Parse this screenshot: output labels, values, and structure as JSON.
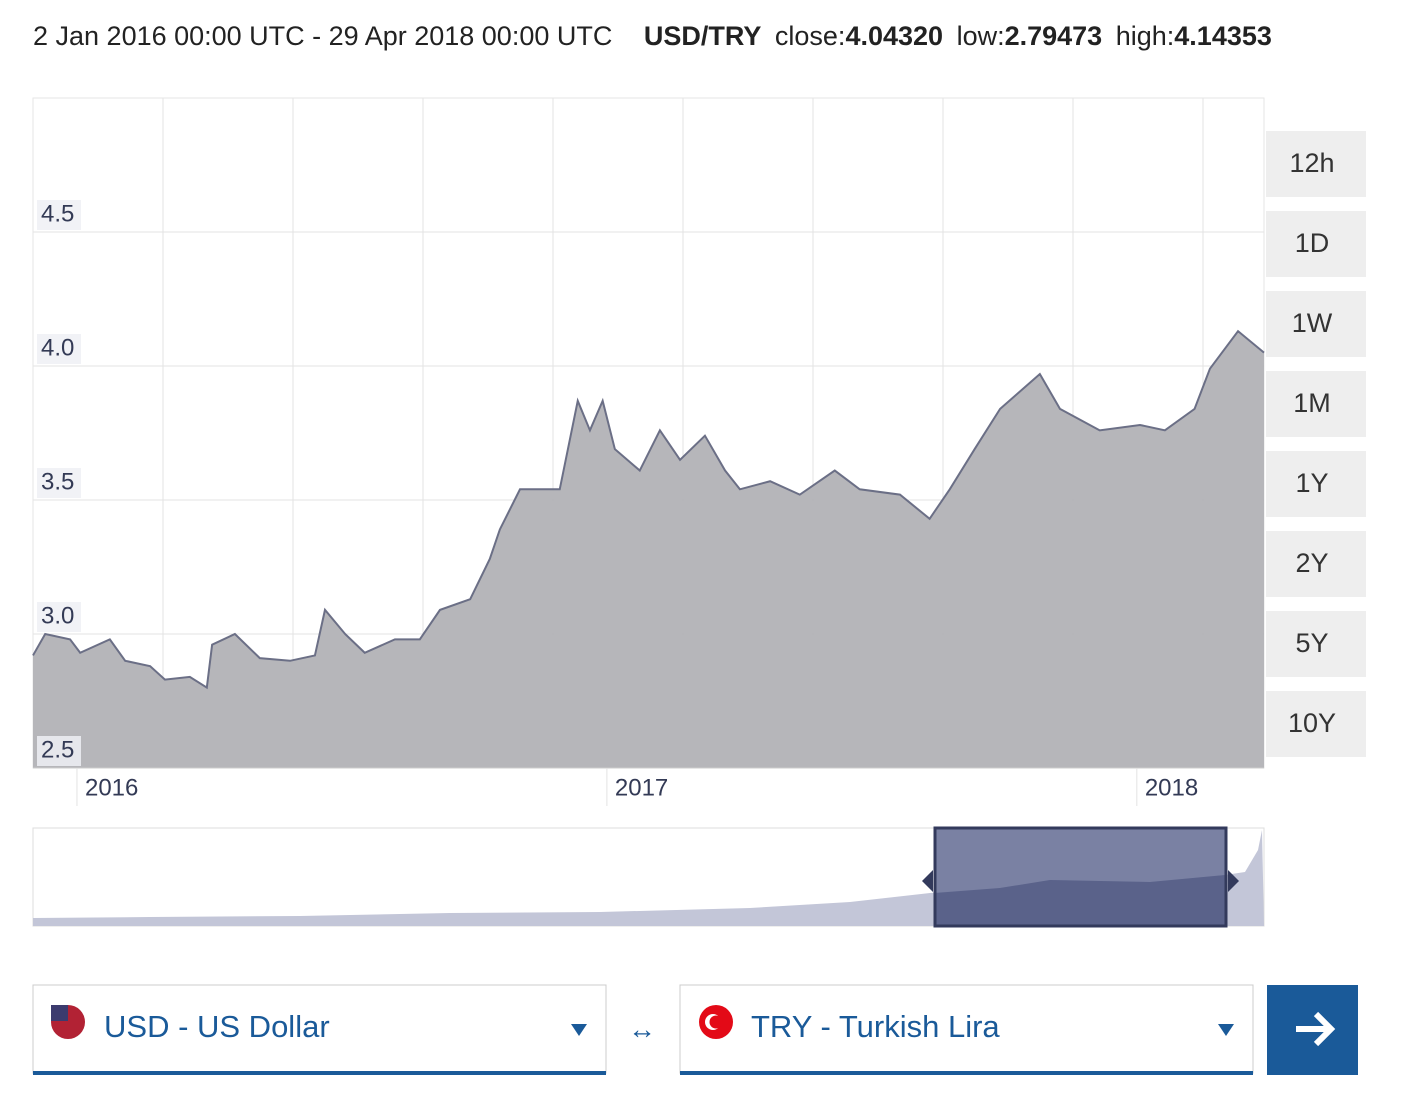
{
  "header": {
    "range": "2 Jan 2016 00:00 UTC - 29 Apr 2018 00:00 UTC",
    "pair": "USD/TRY",
    "close_label": "close:",
    "close": "4.04320",
    "low_label": "low:",
    "low": "2.79473",
    "high_label": "high:",
    "high": "4.14353"
  },
  "chart_data": {
    "type": "area",
    "color": "#6b6f86",
    "fill": "#b2b2b6",
    "grid": true,
    "x": [
      2015.917,
      2015.94,
      2015.987,
      2016.006,
      2016.062,
      2016.091,
      2016.138,
      2016.166,
      2016.213,
      2016.245,
      2016.255,
      2016.298,
      2016.345,
      2016.402,
      2016.449,
      2016.468,
      2016.506,
      2016.543,
      2016.6,
      2016.647,
      2016.685,
      2016.742,
      2016.779,
      2016.798,
      2016.836,
      2016.911,
      2016.945,
      2016.968,
      2016.992,
      2017.015,
      2017.062,
      2017.1,
      2017.138,
      2017.185,
      2017.223,
      2017.251,
      2017.308,
      2017.364,
      2017.43,
      2017.477,
      2017.553,
      2017.609,
      2017.647,
      2017.694,
      2017.742,
      2017.817,
      2017.855,
      2017.93,
      2018.006,
      2018.053,
      2018.109,
      2018.138,
      2018.191,
      2018.24
    ],
    "values": [
      2.92,
      3.0,
      2.98,
      2.93,
      2.98,
      2.9,
      2.88,
      2.83,
      2.84,
      2.8,
      2.96,
      3.0,
      2.91,
      2.9,
      2.92,
      3.09,
      3.0,
      2.93,
      2.98,
      2.98,
      3.09,
      3.13,
      3.28,
      3.39,
      3.54,
      3.54,
      3.87,
      3.76,
      3.87,
      3.69,
      3.61,
      3.76,
      3.65,
      3.74,
      3.61,
      3.54,
      3.57,
      3.52,
      3.61,
      3.54,
      3.52,
      3.43,
      3.54,
      3.69,
      3.84,
      3.97,
      3.84,
      3.76,
      3.78,
      3.76,
      3.84,
      3.99,
      4.13,
      4.05
    ],
    "xlim": [
      2015.917,
      2018.24
    ],
    "xticks": [
      2016,
      2017,
      2018
    ],
    "ylim": [
      2.5,
      5.0
    ],
    "yticks": [
      2.5,
      {
        "value": 3,
        "label": "3.0"
      },
      3.5,
      {
        "value": 4,
        "label": "4.0"
      },
      4.5
    ]
  },
  "ranges": [
    "12h",
    "1D",
    "1W",
    "1M",
    "1Y",
    "2Y",
    "5Y",
    "10Y"
  ],
  "from": "USD - US Dollar",
  "to": "TRY - Turkish Lira"
}
